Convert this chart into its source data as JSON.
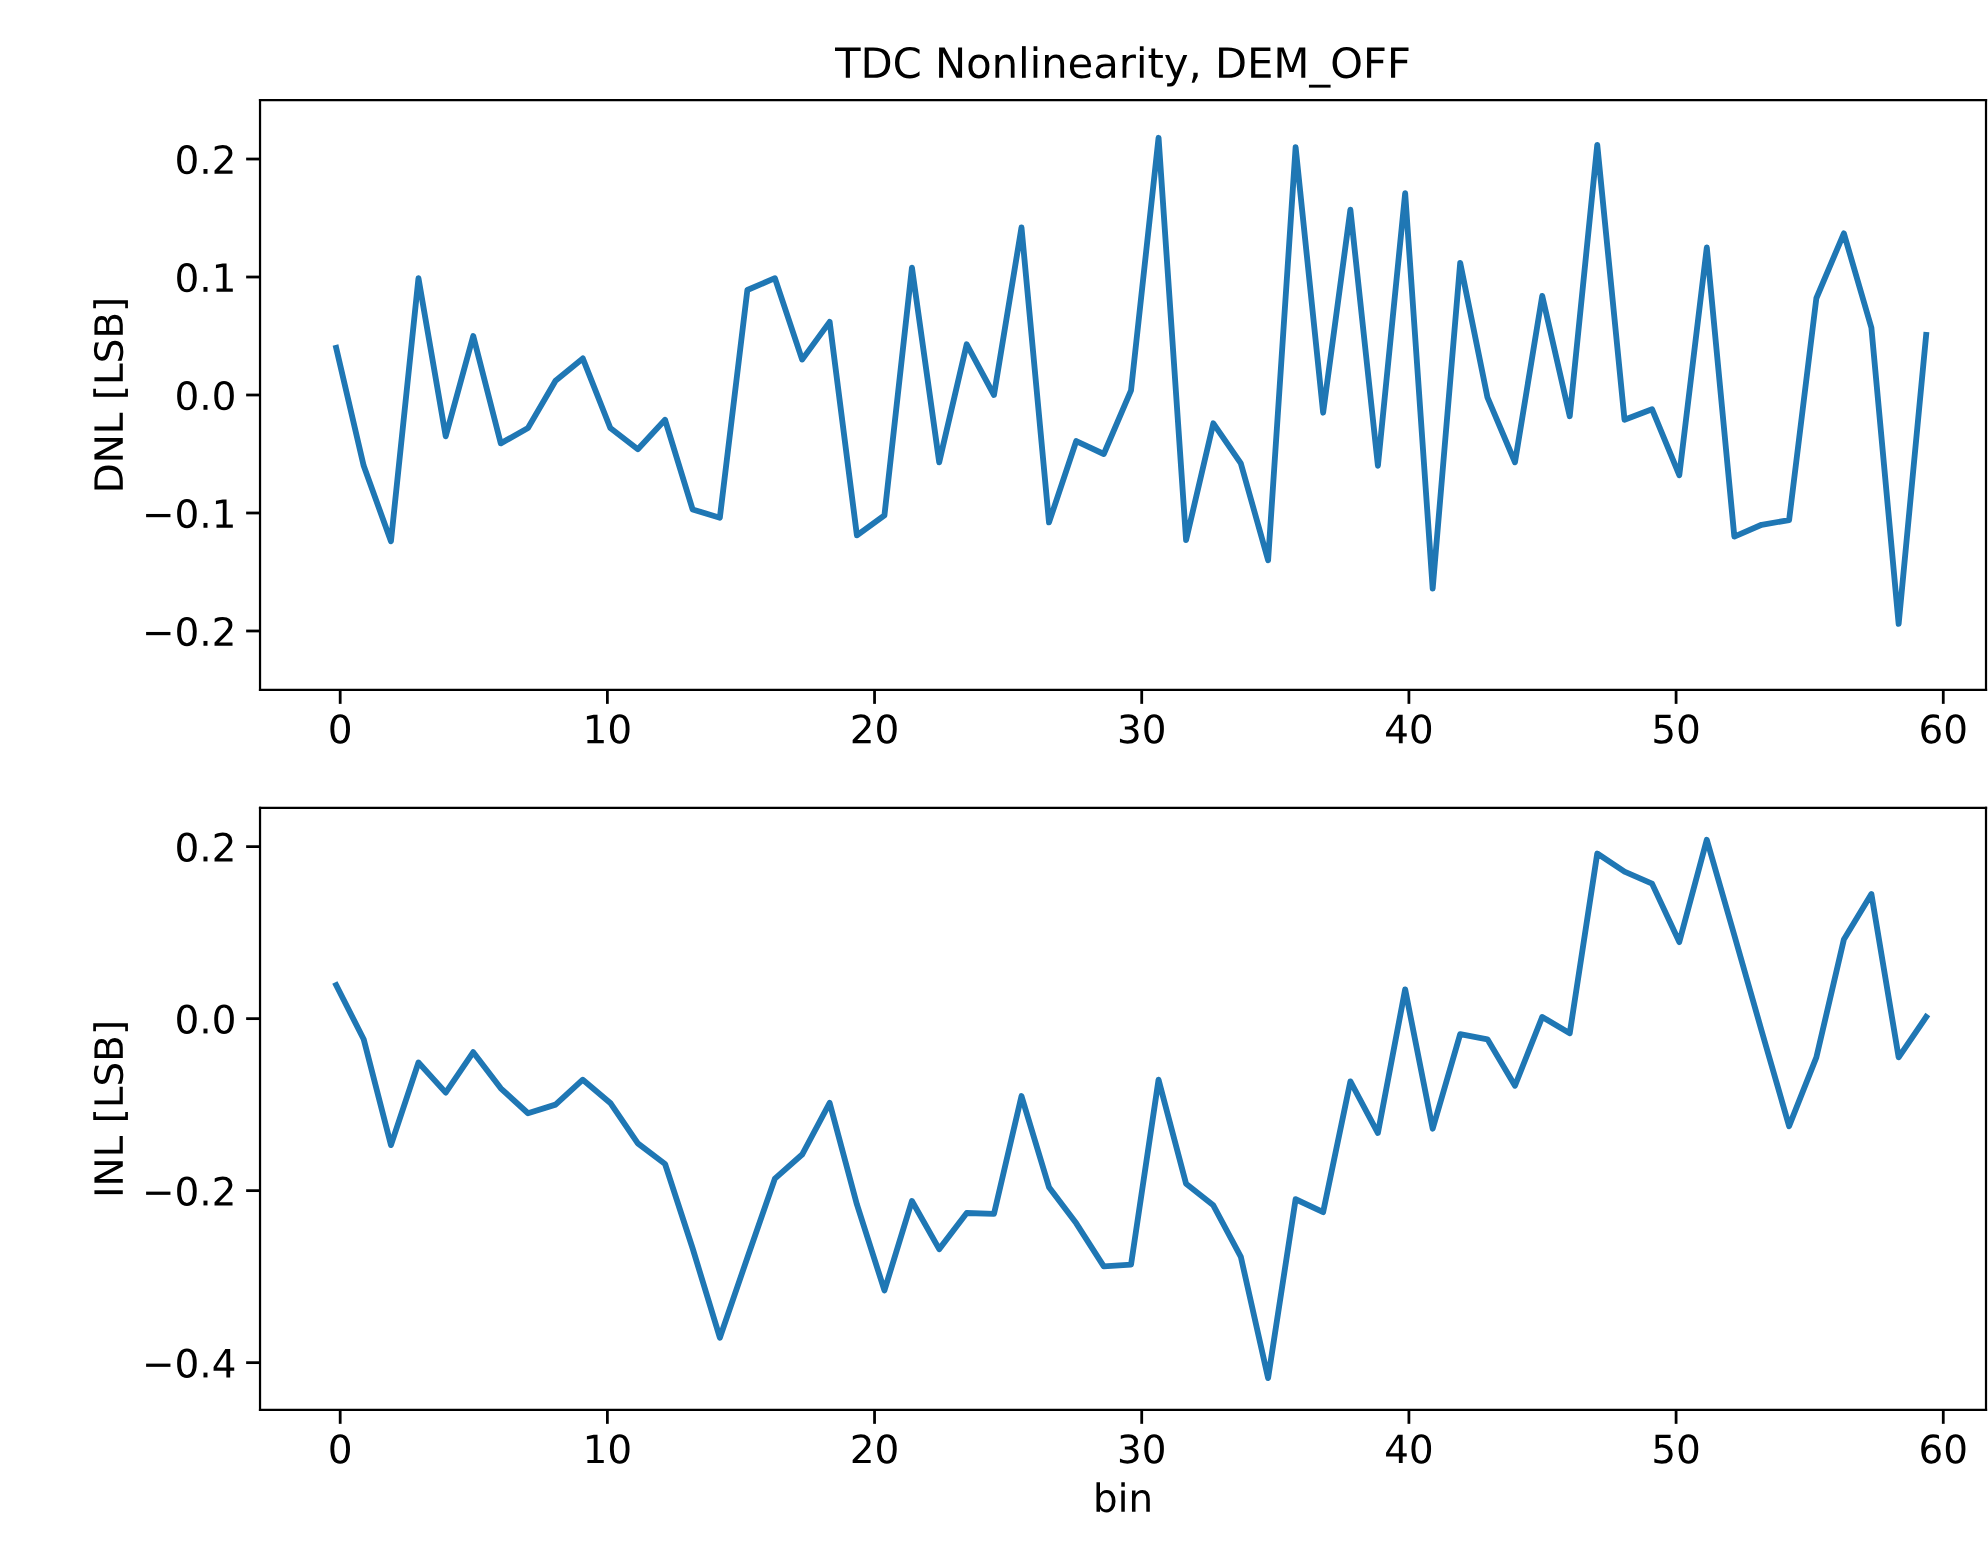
{
  "chart_data": [
    {
      "type": "line",
      "title": "TDC Nonlinearity, DEM_OFF",
      "ylabel": "DNL [LSB]",
      "x": [
        -0.15,
        0.88,
        1.9,
        2.93,
        3.95,
        4.98,
        6.01,
        7.03,
        8.06,
        9.08,
        10.11,
        11.14,
        12.16,
        13.19,
        14.21,
        15.24,
        16.27,
        17.29,
        18.32,
        19.34,
        20.37,
        21.4,
        22.42,
        23.45,
        24.47,
        25.5,
        26.53,
        27.55,
        28.58,
        29.6,
        30.63,
        31.66,
        32.68,
        33.71,
        34.73,
        35.76,
        36.79,
        37.81,
        38.84,
        39.86,
        40.89,
        41.92,
        42.94,
        43.97,
        44.99,
        46.02,
        47.05,
        48.07,
        49.1,
        50.12,
        51.15,
        52.18,
        53.2,
        54.23,
        55.25,
        56.28,
        57.31,
        58.33,
        59.36
      ],
      "series": [
        {
          "color": "#1f77b4",
          "values": [
            0.04,
            -0.06,
            -0.124,
            0.099,
            -0.035,
            0.05,
            -0.041,
            -0.028,
            0.012,
            0.031,
            -0.028,
            -0.046,
            -0.021,
            -0.097,
            -0.104,
            0.089,
            0.099,
            0.03,
            0.062,
            -0.119,
            -0.102,
            0.108,
            -0.057,
            0.043,
            0.0,
            0.142,
            -0.108,
            -0.039,
            -0.05,
            0.004,
            0.218,
            -0.123,
            -0.024,
            -0.058,
            -0.14,
            0.21,
            -0.015,
            0.157,
            -0.06,
            0.171,
            -0.164,
            0.112,
            -0.002,
            -0.057,
            0.084,
            -0.018,
            0.212,
            -0.021,
            -0.012,
            -0.068,
            0.125,
            -0.12,
            -0.11,
            -0.106,
            0.082,
            0.137,
            0.057,
            -0.194,
            0.051
          ]
        }
      ],
      "xlim": [
        -3.0,
        61.6
      ],
      "ylim": [
        -0.25,
        0.25
      ],
      "xticks": [
        0,
        10,
        20,
        30,
        40,
        50,
        60
      ],
      "yticks": [
        {
          "value": -0.2,
          "label": "−0.2"
        },
        {
          "value": -0.1,
          "label": "−0.1"
        },
        {
          "value": 0.0,
          "label": "0.0"
        },
        {
          "value": 0.1,
          "label": "0.1"
        },
        {
          "value": 0.2,
          "label": "0.2"
        }
      ],
      "grid": false,
      "legend": false
    },
    {
      "type": "line",
      "xlabel": "bin",
      "ylabel": "INL [LSB]",
      "x": [
        -0.15,
        0.88,
        1.9,
        2.93,
        3.95,
        4.98,
        6.01,
        7.03,
        8.06,
        9.08,
        10.11,
        11.14,
        12.16,
        13.19,
        14.21,
        15.24,
        16.27,
        17.29,
        18.32,
        19.34,
        20.37,
        21.4,
        22.42,
        23.45,
        24.47,
        25.5,
        26.53,
        27.55,
        28.58,
        29.6,
        30.63,
        31.66,
        32.68,
        33.71,
        34.73,
        35.76,
        36.79,
        37.81,
        38.84,
        39.86,
        40.89,
        41.92,
        42.94,
        43.97,
        44.99,
        46.02,
        47.05,
        48.07,
        49.1,
        50.12,
        51.15,
        52.18,
        53.2,
        54.23,
        55.25,
        56.28,
        57.31,
        58.33,
        59.36
      ],
      "series": [
        {
          "color": "#1f77b4",
          "values": [
            0.039,
            -0.024,
            -0.147,
            -0.051,
            -0.086,
            -0.039,
            -0.081,
            -0.11,
            -0.1,
            -0.071,
            -0.098,
            -0.145,
            -0.169,
            -0.267,
            -0.371,
            -0.278,
            -0.186,
            -0.158,
            -0.098,
            -0.216,
            -0.316,
            -0.212,
            -0.268,
            -0.226,
            -0.227,
            -0.09,
            -0.196,
            -0.238,
            -0.288,
            -0.286,
            -0.071,
            -0.192,
            -0.217,
            -0.277,
            -0.418,
            -0.21,
            -0.225,
            -0.073,
            -0.133,
            0.034,
            -0.128,
            -0.018,
            -0.024,
            -0.078,
            0.002,
            -0.017,
            0.192,
            0.171,
            0.157,
            0.089,
            0.208,
            0.097,
            -0.014,
            -0.125,
            -0.045,
            0.092,
            0.145,
            -0.045,
            0.002
          ]
        }
      ],
      "xlim": [
        -3.0,
        61.6
      ],
      "ylim": [
        -0.455,
        0.245
      ],
      "xticks": [
        0,
        10,
        20,
        30,
        40,
        50,
        60
      ],
      "yticks": [
        {
          "value": -0.4,
          "label": "−0.4"
        },
        {
          "value": -0.2,
          "label": "−0.2"
        },
        {
          "value": 0.0,
          "label": "0.0"
        },
        {
          "value": 0.2,
          "label": "0.2"
        }
      ],
      "grid": false,
      "legend": false
    }
  ]
}
